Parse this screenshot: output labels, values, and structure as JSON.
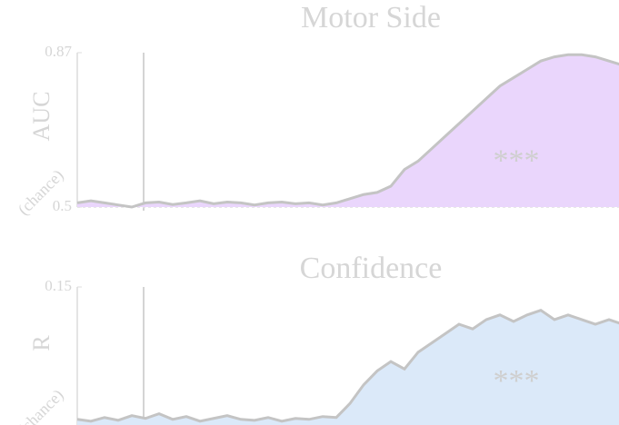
{
  "chart_data": [
    {
      "type": "line",
      "title": "Motor Side",
      "y_label": "AUC",
      "y_note": "(chance)",
      "annotation": "***",
      "x": [
        0,
        1,
        2,
        3,
        4,
        5,
        6,
        7,
        8,
        9,
        10,
        11,
        12,
        13,
        14,
        15,
        16,
        17,
        18,
        19,
        20,
        21,
        22,
        23,
        24,
        25,
        26,
        27,
        28,
        29,
        30,
        31,
        32,
        33,
        34,
        35,
        36,
        37,
        38,
        39,
        40
      ],
      "series": [
        {
          "name": "AUC",
          "color": "#c4c4c4",
          "fill": "#ead6fc",
          "values": [
            0.51,
            0.515,
            0.51,
            0.505,
            0.5,
            0.51,
            0.512,
            0.506,
            0.51,
            0.515,
            0.508,
            0.512,
            0.51,
            0.505,
            0.51,
            0.512,
            0.508,
            0.51,
            0.505,
            0.51,
            0.52,
            0.53,
            0.535,
            0.55,
            0.59,
            0.61,
            0.64,
            0.67,
            0.7,
            0.73,
            0.76,
            0.79,
            0.81,
            0.83,
            0.85,
            0.86,
            0.865,
            0.865,
            0.86,
            0.85,
            0.84
          ]
        }
      ],
      "xlim": [
        0,
        40
      ],
      "ylim": [
        0.5,
        0.87
      ],
      "yticks": [
        0.5,
        0.87
      ]
    },
    {
      "type": "line",
      "title": "Confidence",
      "y_label": "R",
      "y_note": "(chance)",
      "annotation": "***",
      "x": [
        0,
        1,
        2,
        3,
        4,
        5,
        6,
        7,
        8,
        9,
        10,
        11,
        12,
        13,
        14,
        15,
        16,
        17,
        18,
        19,
        20,
        21,
        22,
        23,
        24,
        25,
        26,
        27,
        28,
        29,
        30,
        31,
        32,
        33,
        34,
        35,
        36,
        37,
        38,
        39,
        40
      ],
      "series": [
        {
          "name": "R",
          "color": "#c4c4c4",
          "fill": "#dbe9f9",
          "values": [
            0.008,
            0.006,
            0.01,
            0.007,
            0.012,
            0.009,
            0.014,
            0.008,
            0.011,
            0.006,
            0.009,
            0.012,
            0.008,
            0.007,
            0.01,
            0.006,
            0.009,
            0.008,
            0.011,
            0.01,
            0.025,
            0.045,
            0.06,
            0.07,
            0.062,
            0.08,
            0.09,
            0.1,
            0.11,
            0.105,
            0.115,
            0.12,
            0.113,
            0.12,
            0.125,
            0.115,
            0.12,
            0.115,
            0.11,
            0.115,
            0.11
          ]
        }
      ],
      "xlim": [
        0,
        40
      ],
      "ylim": [
        0,
        0.15
      ],
      "yticks": [
        0.15
      ]
    }
  ]
}
